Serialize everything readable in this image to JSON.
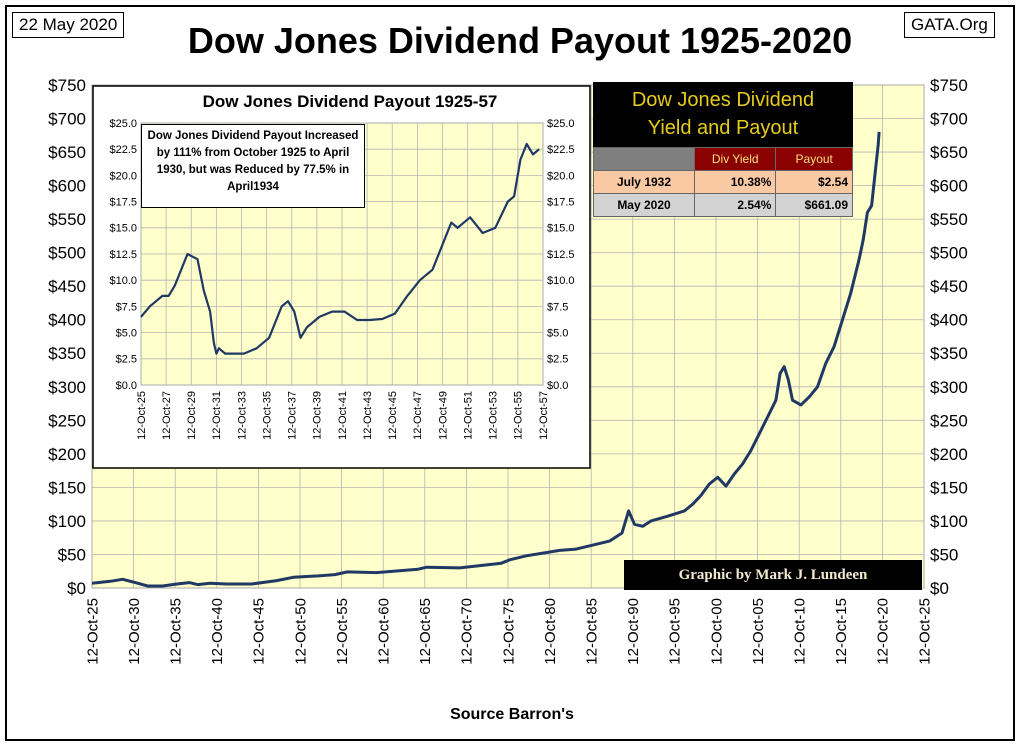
{
  "header": {
    "date_label": "22 May 2020",
    "site_label": "GATA.Org",
    "title": "Dow Jones Dividend Payout 1925-2020",
    "source": "Source Barron's",
    "credit": "Graphic by Mark J. Lundeen"
  },
  "colors": {
    "plot_bg": "#ffffcc",
    "line": "#1f3864",
    "grid": "#b5b5b5"
  },
  "chart_data": [
    {
      "type": "line",
      "title": "Dow Jones Dividend Payout 1925-2020",
      "y_ticks": [
        "$0",
        "$50",
        "$100",
        "$150",
        "$200",
        "$250",
        "$300",
        "$350",
        "$400",
        "$450",
        "$500",
        "$550",
        "$600",
        "$650",
        "$700",
        "$750"
      ],
      "ylim": [
        0,
        750
      ],
      "x_ticks": [
        "12-Oct-25",
        "12-Oct-30",
        "12-Oct-35",
        "12-Oct-40",
        "12-Oct-45",
        "12-Oct-50",
        "12-Oct-55",
        "12-Oct-60",
        "12-Oct-65",
        "12-Oct-70",
        "12-Oct-75",
        "12-Oct-80",
        "12-Oct-85",
        "12-Oct-90",
        "12-Oct-95",
        "12-Oct-00",
        "12-Oct-05",
        "12-Oct-10",
        "12-Oct-15",
        "12-Oct-20",
        "12-Oct-25"
      ],
      "xlim": [
        1925.8,
        2025.8
      ],
      "grid": true,
      "series": [
        {
          "x": [
            1925.8,
            1928,
            1929.5,
            1931,
            1932.5,
            1934.3,
            1936,
            1937.5,
            1938.5,
            1940,
            1942,
            1945,
            1948,
            1950,
            1953,
            1955,
            1956.5,
            1960,
            1965,
            1966,
            1970,
            1975,
            1976,
            1978,
            1980,
            1982,
            1984,
            1986,
            1988,
            1989.5,
            1990.3,
            1991,
            1992,
            1993,
            1995,
            1997,
            1998,
            1999,
            2000,
            2001,
            2002,
            2003,
            2004,
            2005,
            2006,
            2007,
            2008,
            2008.5,
            2009,
            2009.5,
            2010,
            2011,
            2012,
            2013,
            2014,
            2015,
            2016,
            2017,
            2018,
            2018.5,
            2019,
            2019.5,
            2020.3,
            2020.4
          ],
          "y": [
            7,
            10,
            13,
            8,
            3,
            3,
            6,
            8,
            5,
            7,
            6,
            6,
            11,
            16,
            18,
            20,
            24,
            23,
            28,
            31,
            30,
            37,
            42,
            48,
            52,
            56,
            58,
            64,
            70,
            82,
            115,
            95,
            92,
            100,
            107,
            115,
            125,
            138,
            155,
            165,
            152,
            170,
            185,
            205,
            230,
            255,
            280,
            320,
            330,
            310,
            280,
            273,
            285,
            300,
            335,
            360,
            400,
            440,
            490,
            520,
            560,
            570,
            661,
            680
          ]
        }
      ]
    },
    {
      "type": "line",
      "title": "Dow Jones Dividend Payout 1925-57",
      "annotation": "Dow Jones Dividend Payout Increased by  111% from October 1925 to April 1930, but was Reduced by 77.5% in April1934",
      "y_ticks": [
        "$0.0",
        "$2.5",
        "$5.0",
        "$7.5",
        "$10.0",
        "$12.5",
        "$15.0",
        "$17.5",
        "$20.0",
        "$22.5",
        "$25.0"
      ],
      "ylim": [
        0,
        25
      ],
      "x_ticks": [
        "12-Oct-25",
        "12-Oct-27",
        "12-Oct-29",
        "12-Oct-31",
        "12-Oct-33",
        "12-Oct-35",
        "12-Oct-37",
        "12-Oct-39",
        "12-Oct-41",
        "12-Oct-43",
        "12-Oct-45",
        "12-Oct-47",
        "12-Oct-49",
        "12-Oct-51",
        "12-Oct-53",
        "12-Oct-55",
        "12-Oct-57"
      ],
      "xlim": [
        1925.8,
        1957.8
      ],
      "grid": true,
      "series": [
        {
          "x": [
            1925.8,
            1926.5,
            1927,
            1927.5,
            1928,
            1928.5,
            1929,
            1929.5,
            1930.3,
            1930.8,
            1931.3,
            1931.6,
            1931.8,
            1932,
            1932.5,
            1933,
            1934,
            1935,
            1936,
            1937,
            1937.5,
            1938,
            1938.5,
            1939,
            1940,
            1941,
            1942,
            1943,
            1944,
            1945,
            1946,
            1947,
            1948,
            1949,
            1950,
            1950.5,
            1951,
            1952,
            1953,
            1954,
            1955,
            1955.5,
            1956,
            1956.5,
            1957,
            1957.5
          ],
          "y": [
            6.5,
            7.5,
            8,
            8.5,
            8.5,
            9.5,
            11,
            12.5,
            12,
            9,
            7,
            4,
            3,
            3.5,
            3,
            3,
            3,
            3.5,
            4.5,
            7.5,
            8,
            7,
            4.5,
            5.5,
            6.5,
            7,
            7,
            6.2,
            6.2,
            6.3,
            6.8,
            8.5,
            10,
            11,
            14,
            15.5,
            15,
            16,
            14.5,
            15,
            17.5,
            18,
            21.5,
            23,
            22,
            22.5
          ]
        }
      ]
    }
  ],
  "yield_table": {
    "title_line1": "Dow Jones Dividend",
    "title_line2": "Yield and Payout",
    "col_yield": "Div Yield",
    "col_payout": "Payout",
    "rows": [
      {
        "date": "July 1932",
        "yield": "10.38%",
        "payout": "$2.54"
      },
      {
        "date": "May 2020",
        "yield": "2.54%",
        "payout": "$661.09"
      }
    ]
  }
}
